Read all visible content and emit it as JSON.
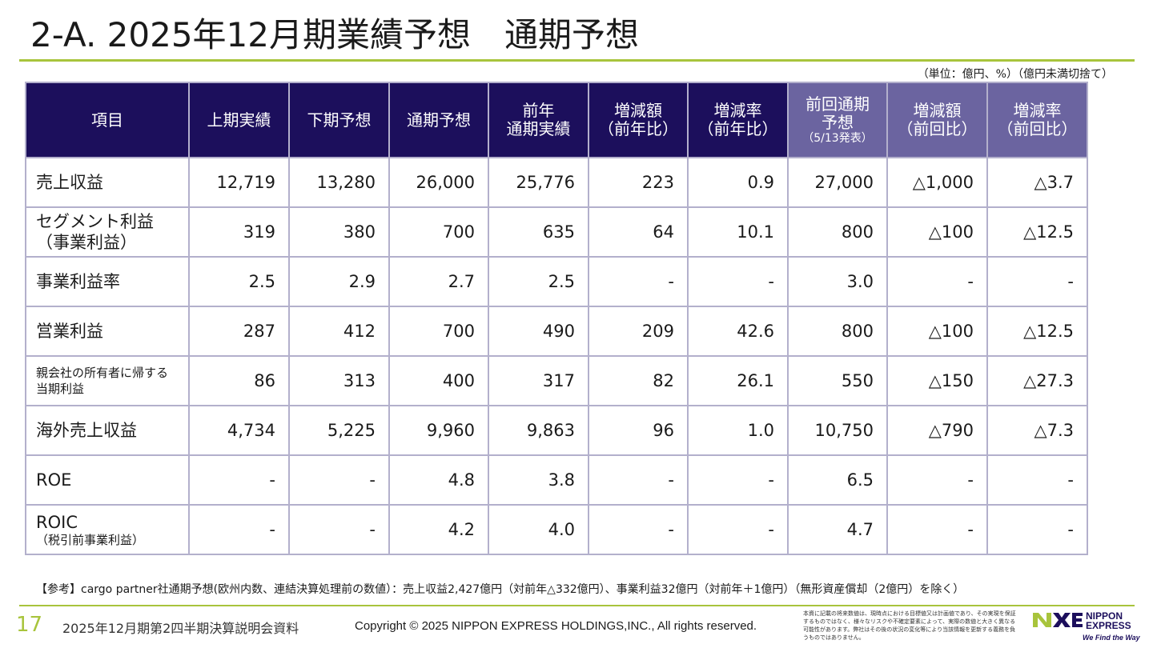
{
  "title": "2-A. 2025年12月期業績予想　通期予想",
  "unit_note": "（単位：億円、%）（億円未満切捨て）",
  "table": {
    "headers": [
      {
        "lines": [
          "項目"
        ],
        "small": ""
      },
      {
        "lines": [
          "上期実績"
        ],
        "small": ""
      },
      {
        "lines": [
          "下期予想"
        ],
        "small": ""
      },
      {
        "lines": [
          "通期予想"
        ],
        "small": ""
      },
      {
        "lines": [
          "前年",
          "通期実績"
        ],
        "small": ""
      },
      {
        "lines": [
          "増減額",
          "（前年比）"
        ],
        "small": ""
      },
      {
        "lines": [
          "増減率",
          "（前年比）"
        ],
        "small": ""
      },
      {
        "lines": [
          "前回通期",
          "予想"
        ],
        "small": "（5/13発表）"
      },
      {
        "lines": [
          "増減額",
          "（前回比）"
        ],
        "small": ""
      },
      {
        "lines": [
          "増減率",
          "（前回比）"
        ],
        "small": ""
      }
    ],
    "rows": [
      {
        "label": [
          "売上収益"
        ],
        "sub": "",
        "values": [
          "12,719",
          "13,280",
          "26,000",
          "25,776",
          "223",
          "0.9",
          "27,000",
          "△1,000",
          "△3.7"
        ]
      },
      {
        "label": [
          "セグメント利益",
          "（事業利益）"
        ],
        "sub": "",
        "values": [
          "319",
          "380",
          "700",
          "635",
          "64",
          "10.1",
          "800",
          "△100",
          "△12.5"
        ]
      },
      {
        "label": [
          "事業利益率"
        ],
        "sub": "",
        "values": [
          "2.5",
          "2.9",
          "2.7",
          "2.5",
          "-",
          "-",
          "3.0",
          "-",
          "-"
        ]
      },
      {
        "label": [
          "営業利益"
        ],
        "sub": "",
        "values": [
          "287",
          "412",
          "700",
          "490",
          "209",
          "42.6",
          "800",
          "△100",
          "△12.5"
        ]
      },
      {
        "label": [
          "親会社の所有者に帰する",
          "当期利益"
        ],
        "sub": "",
        "values": [
          "86",
          "313",
          "400",
          "317",
          "82",
          "26.1",
          "550",
          "△150",
          "△27.3"
        ]
      },
      {
        "label": [
          "海外売上収益"
        ],
        "sub": "",
        "values": [
          "4,734",
          "5,225",
          "9,960",
          "9,863",
          "96",
          "1.0",
          "10,750",
          "△790",
          "△7.3"
        ]
      },
      {
        "label": [
          "ROE"
        ],
        "sub": "",
        "values": [
          "-",
          "-",
          "4.8",
          "3.8",
          "-",
          "-",
          "6.5",
          "-",
          "-"
        ]
      },
      {
        "label": [
          "ROIC"
        ],
        "sub": "（税引前事業利益）",
        "values": [
          "-",
          "-",
          "4.2",
          "4.0",
          "-",
          "-",
          "4.7",
          "-",
          "-"
        ]
      }
    ]
  },
  "reference_note": "【参考】cargo partner社通期予想(欧州内数、連結決算処理前の数値）：売上収益2,427億円（対前年△332億円）、事業利益32億円（対前年＋1億円）（無形資産償却（2億円）を除く）",
  "footer": {
    "page_number": "17",
    "document_name": "2025年12月期第2四半期決算説明会資料",
    "copyright": "Copyright © 2025 NIPPON EXPRESS HOLDINGS,INC., All rights reserved.",
    "disclaimer": "本資に記載の将来数値は、現時点における目標値又は計画値であり、その実現を保証するものではなく、様々なリスクや不確定要素によって、実際の数値と大きく異なる可能性があります。弊社はその後の状況の変化等により当該情報を更新する義務を負うものではありません。",
    "logo_line1": "NIPPON",
    "logo_line2": "EXPRESS",
    "logo_tagline": "We Find the Way"
  },
  "colors": {
    "header_bg": "#1c0f5c",
    "header_prev_bg": "#6b64a0",
    "accent_green": "#a8c43c",
    "grid": "#b3b0cc"
  }
}
